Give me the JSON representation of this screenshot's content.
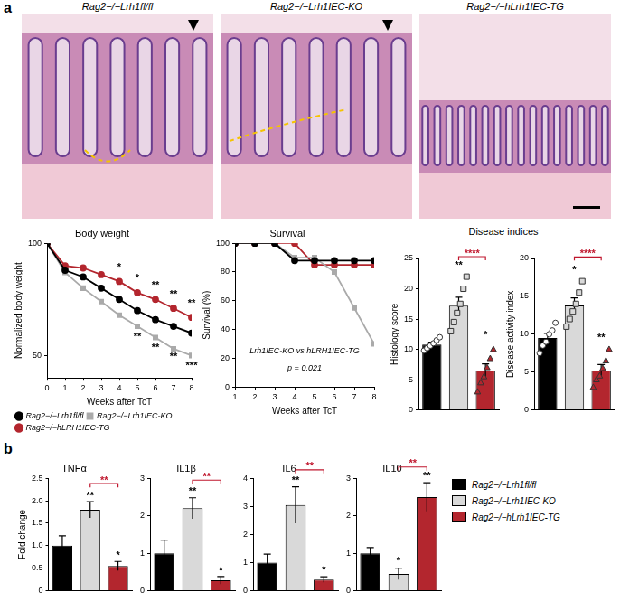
{
  "panel_labels": [
    "a",
    "b"
  ],
  "images": [
    {
      "title": "Rag2−/−Lrh1fl/fl"
    },
    {
      "title": "Rag2−/−Lrh1IEC-KO"
    },
    {
      "title": "Rag2−/−hLrh1IEC-TG"
    }
  ],
  "disease_indices_title": "Disease indices",
  "groups": [
    {
      "name": "Rag2−/−Lrh1fl/fl",
      "color": "#000000"
    },
    {
      "name": "Rag2−/−Lrh1IEC-KO",
      "color": "#d9d9d9"
    },
    {
      "name": "Rag2−/−hLrh1IEC-TG",
      "color": "#b3262e"
    }
  ],
  "chart_data": [
    {
      "type": "line",
      "title": "Body weight",
      "x_label": "Weeks after TcT",
      "y_label": "Normalized body weight",
      "x": [
        0,
        1,
        2,
        3,
        4,
        5,
        6,
        7,
        8
      ],
      "xlim": [
        0,
        8
      ],
      "xticks": [
        0,
        1,
        2,
        3,
        4,
        5,
        6,
        7,
        8
      ],
      "ylim": [
        40,
        100
      ],
      "yticks": [
        50,
        100
      ],
      "grid": false,
      "legend": "bottom",
      "series": [
        {
          "name": "Rag2−/−Lrh1fl/fl",
          "color": "#000000",
          "marker": "circle",
          "values": [
            100,
            88,
            85,
            80,
            75,
            70,
            66,
            63,
            60
          ]
        },
        {
          "name": "Rag2−/−Lrh1IEC-KO",
          "color": "#aaaaaa",
          "marker": "rect",
          "values": [
            100,
            87,
            80,
            74,
            68,
            63,
            58,
            53,
            50
          ]
        },
        {
          "name": "Rag2−/−hLRH1IEC-TG",
          "color": "#b3262e",
          "marker": "circle",
          "values": [
            100,
            90,
            89,
            86,
            83,
            78,
            75,
            71,
            67
          ]
        }
      ],
      "annotations": [
        {
          "x": 4,
          "y": 87,
          "text": "*"
        },
        {
          "x": 5,
          "y": 82,
          "text": "*"
        },
        {
          "x": 6,
          "y": 79,
          "text": "**"
        },
        {
          "x": 7,
          "y": 75,
          "text": "**"
        },
        {
          "x": 8,
          "y": 71,
          "text": "**"
        },
        {
          "x": 5,
          "y": 56,
          "text": "**"
        },
        {
          "x": 6,
          "y": 51,
          "text": "**"
        },
        {
          "x": 7,
          "y": 47,
          "text": "**"
        },
        {
          "x": 8,
          "y": 43,
          "text": "***"
        }
      ]
    },
    {
      "type": "line",
      "title": "Survival",
      "x_label": "Weeks after TcT",
      "y_label": "Survival (%)",
      "x": [
        1,
        2,
        3,
        4,
        5,
        6,
        7,
        8
      ],
      "xlim": [
        1,
        8
      ],
      "xticks": [
        1,
        2,
        3,
        4,
        5,
        6,
        7,
        8
      ],
      "ylim": [
        0,
        100
      ],
      "yticks": [
        0,
        20,
        40,
        60,
        80,
        100
      ],
      "grid": false,
      "series": [
        {
          "name": "Rag2−/−Lrh1fl/fl",
          "color": "#000000",
          "marker": "circle",
          "values": [
            100,
            100,
            100,
            88,
            88,
            88,
            88,
            88
          ]
        },
        {
          "name": "Rag2−/−Lrh1IEC-KO",
          "color": "#aaaaaa",
          "marker": "rect",
          "values": [
            100,
            100,
            100,
            90,
            90,
            80,
            55,
            30
          ]
        },
        {
          "name": "Rag2−/−hLRH1IEC-TG",
          "color": "#b3262e",
          "marker": "circle",
          "values": [
            100,
            100,
            100,
            100,
            85,
            85,
            85,
            85
          ]
        }
      ],
      "annotations": [
        {
          "x": 4.5,
          "y": 22,
          "text": "Lrh1IEC-KO vs hLRH1IEC-TG"
        },
        {
          "x": 4.5,
          "y": 10,
          "text": "p = 0.021"
        }
      ]
    },
    {
      "type": "bar",
      "y_label": "Histology score",
      "categories": [
        null,
        null,
        null
      ],
      "values": [
        10.8,
        17.2,
        6.5
      ],
      "errors": [
        0.4,
        1.4,
        1.1
      ],
      "colors": [
        "#000000",
        "#d9d9d9",
        "#b3262e"
      ],
      "points": [
        [
          9.8,
          10.2,
          10.6,
          11,
          11.5,
          12
        ],
        [
          13,
          14.5,
          16,
          17.5,
          20,
          22
        ],
        [
          3,
          4.5,
          5.5,
          7,
          8.5,
          10
        ]
      ],
      "marker": [
        "circle",
        "rect",
        "triangle"
      ],
      "ylim": [
        0,
        25
      ],
      "yticks": [
        0,
        5,
        10,
        15,
        20,
        25
      ],
      "grid": false,
      "tick_labels": "y",
      "annotations": [
        {
          "x": 1,
          "y": 23,
          "text": "**"
        },
        {
          "x": 2,
          "y": 11.5,
          "text": "*"
        }
      ],
      "brackets": [
        {
          "from": 1,
          "to": 2,
          "y": 25.3,
          "text": "****",
          "color": "#c0172e"
        }
      ]
    },
    {
      "type": "bar",
      "y_label": "Disease activity index",
      "categories": [
        null,
        null,
        null
      ],
      "values": [
        9.5,
        13.8,
        5.2
      ],
      "errors": [
        0.6,
        1.0,
        0.8
      ],
      "colors": [
        "#000000",
        "#d9d9d9",
        "#b3262e"
      ],
      "points": [
        [
          7.5,
          8.5,
          9,
          10,
          10.5,
          11.5
        ],
        [
          11,
          12,
          13,
          14,
          15.5,
          17
        ],
        [
          3,
          4,
          4.5,
          5.5,
          6.5,
          8
        ]
      ],
      "marker": [
        "circle",
        "rect",
        "triangle"
      ],
      "ylim": [
        0,
        20
      ],
      "yticks": [
        0,
        5,
        10,
        15,
        20
      ],
      "grid": false,
      "tick_labels": "y",
      "annotations": [
        {
          "x": 1,
          "y": 17.8,
          "text": "*"
        },
        {
          "x": 2,
          "y": 8.8,
          "text": "**"
        }
      ],
      "brackets": [
        {
          "from": 1,
          "to": 2,
          "y": 20.2,
          "text": "****",
          "color": "#c0172e"
        }
      ]
    },
    {
      "type": "bar",
      "title": "TNFα",
      "y_label": "Fold change",
      "categories": [
        null,
        null,
        null
      ],
      "values": [
        1.0,
        1.8,
        0.55
      ],
      "errors": [
        0.22,
        0.18,
        0.1
      ],
      "colors": [
        "#000000",
        "#d9d9d9",
        "#b3262e"
      ],
      "ylim": [
        0,
        2.5
      ],
      "yticks": [
        0,
        0.5,
        {
          "value": 1,
          "label": "1.0"
        },
        1.5,
        {
          "value": 2,
          "label": "2.0"
        },
        2.5
      ],
      "grid": false,
      "tick_labels": "y",
      "annotations": [
        {
          "x": 1,
          "y": 2.0,
          "text": "**"
        },
        {
          "x": 2,
          "y": 0.67,
          "text": "*"
        }
      ],
      "brackets": [
        {
          "from": 1,
          "to": 2,
          "y": 2.38,
          "text": "**",
          "color": "#c0172e"
        }
      ]
    },
    {
      "type": "bar",
      "title": "IL1β",
      "categories": [
        null,
        null,
        null
      ],
      "values": [
        1.0,
        2.2,
        0.28
      ],
      "errors": [
        0.35,
        0.28,
        0.1
      ],
      "colors": [
        "#000000",
        "#d9d9d9",
        "#b3262e"
      ],
      "ylim": [
        0,
        3
      ],
      "yticks": [
        0,
        1,
        2,
        3
      ],
      "grid": false,
      "tick_labels": "y",
      "annotations": [
        {
          "x": 1,
          "y": 2.5,
          "text": "**"
        },
        {
          "x": 2,
          "y": 0.4,
          "text": "*"
        }
      ],
      "brackets": [
        {
          "from": 1,
          "to": 2,
          "y": 2.95,
          "text": "**",
          "color": "#c0172e"
        }
      ]
    },
    {
      "type": "bar",
      "title": "IL6",
      "categories": [
        null,
        null,
        null
      ],
      "values": [
        1.0,
        3.05,
        0.4
      ],
      "errors": [
        0.3,
        0.65,
        0.1
      ],
      "colors": [
        "#000000",
        "#d9d9d9",
        "#b3262e"
      ],
      "ylim": [
        0,
        4
      ],
      "yticks": [
        0,
        1,
        2,
        3,
        4
      ],
      "grid": false,
      "tick_labels": "y",
      "annotations": [
        {
          "x": 1,
          "y": 3.75,
          "text": "**"
        },
        {
          "x": 2,
          "y": 0.55,
          "text": "*"
        }
      ],
      "brackets": [
        {
          "from": 1,
          "to": 2,
          "y": 4.3,
          "text": "**",
          "color": "#c0172e"
        }
      ]
    },
    {
      "type": "bar",
      "title": "IL10",
      "categories": [
        null,
        null,
        null
      ],
      "values": [
        1.0,
        0.45,
        2.5
      ],
      "errors": [
        0.15,
        0.15,
        0.38
      ],
      "colors": [
        "#000000",
        "#d9d9d9",
        "#b3262e"
      ],
      "ylim": [
        0,
        3
      ],
      "yticks": [
        0,
        1,
        2,
        3
      ],
      "grid": false,
      "tick_labels": "y",
      "annotations": [
        {
          "x": 1,
          "y": 0.65,
          "text": "*"
        },
        {
          "x": 2,
          "y": 2.92,
          "text": "**"
        }
      ],
      "brackets": [
        {
          "from": 1,
          "to": 2,
          "y": 3.3,
          "text": "**",
          "color": "#c0172e"
        }
      ]
    }
  ]
}
